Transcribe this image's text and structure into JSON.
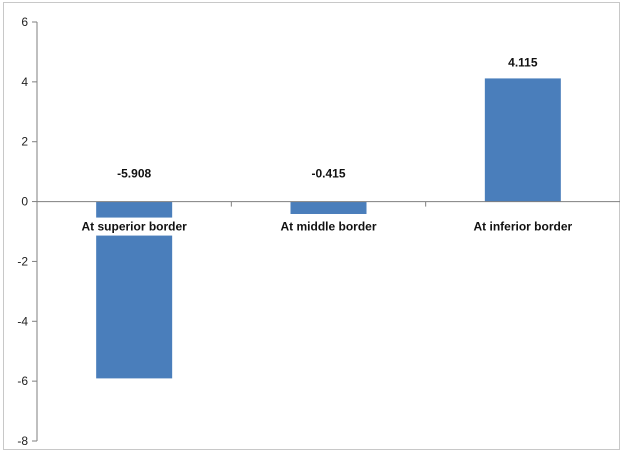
{
  "chart_data": {
    "type": "bar",
    "categories": [
      "At superior border",
      "At middle border",
      "At inferior border"
    ],
    "values": [
      -5.908,
      -0.415,
      4.115
    ],
    "data_labels": [
      "-5.908",
      "-0.415",
      "4.115"
    ],
    "yticks": [
      6,
      4,
      2,
      0,
      -2,
      -4,
      -6,
      -8
    ],
    "ylim": [
      -8,
      6
    ],
    "grid": false,
    "legend": "none",
    "bar_color": "#4a7ebb"
  }
}
